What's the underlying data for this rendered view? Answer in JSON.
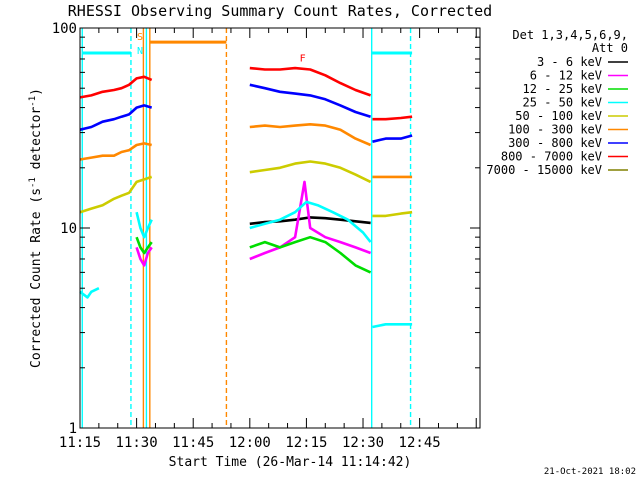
{
  "chart_data": {
    "type": "line",
    "title": "RHESSI Observing Summary Count Rates, Corrected",
    "xlabel": "Start Time (26-Mar-14 11:14:42)",
    "ylabel": "Corrected Count Rate (s⁻¹ detector⁻¹)",
    "ylabel_main": "Corrected Count Rate (s",
    "ylabel_sup1": "-1",
    "ylabel_mid": " detector",
    "ylabel_sup2": "-1",
    "ylabel_end": ")",
    "yscale": "log",
    "ylim": [
      1,
      100
    ],
    "y_ticks": [
      "1",
      "10",
      "100"
    ],
    "x_range_minutes": [
      675,
      781
    ],
    "x_ticks": [
      {
        "label": "11:15",
        "minute": 675
      },
      {
        "label": "11:30",
        "minute": 690
      },
      {
        "label": "11:45",
        "minute": 705
      },
      {
        "label": "12:00",
        "minute": 720
      },
      {
        "label": "12:15",
        "minute": 735
      },
      {
        "label": "12:30",
        "minute": 750
      },
      {
        "label": "12:45",
        "minute": 765
      }
    ],
    "legend_header": [
      "Det 1,3,4,5,6,9,",
      "Att 0"
    ],
    "series": [
      {
        "name": "3 - 6 keV",
        "color": "#000000",
        "segments": [
          {
            "x": [
              675,
              679,
              684,
              688,
              690,
              693,
              694
            ],
            "y": [
              null,
              null,
              null,
              null,
              null,
              null,
              null
            ]
          },
          {
            "x": [
              720,
              724,
              728,
              732,
              736,
              740,
              744,
              748,
              752
            ],
            "y": [
              10.5,
              10.7,
              10.8,
              11.0,
              11.3,
              11.2,
              11.0,
              10.8,
              10.6
            ]
          },
          {
            "x": [
              752.5,
              756,
              760,
              763
            ],
            "y": [
              null,
              null,
              null,
              null
            ]
          }
        ]
      },
      {
        "name": "6 - 12 keV",
        "color": "#ff00ff",
        "segments": [
          {
            "x": [
              690,
              691,
              692,
              693,
              694
            ],
            "y": [
              8.0,
              7.0,
              6.5,
              7.5,
              8.0
            ]
          },
          {
            "x": [
              720,
              724,
              728,
              732,
              734.5,
              736,
              740,
              744,
              748,
              752
            ],
            "y": [
              7.0,
              7.5,
              8.0,
              9.0,
              17.0,
              10.0,
              9.0,
              8.5,
              8.0,
              7.5
            ]
          }
        ]
      },
      {
        "name": "12 - 25 keV",
        "color": "#00dd00",
        "segments": [
          {
            "x": [
              690,
              691,
              692,
              693,
              694
            ],
            "y": [
              9.0,
              8.0,
              7.5,
              8.0,
              8.5
            ]
          },
          {
            "x": [
              720,
              724,
              728,
              732,
              736,
              740,
              744,
              748,
              752
            ],
            "y": [
              8.0,
              8.5,
              8.0,
              8.5,
              9.0,
              8.5,
              7.5,
              6.5,
              6.0
            ]
          }
        ]
      },
      {
        "name": "25 - 50 keV",
        "color": "#00ffff",
        "segments": [
          {
            "x": [
              675,
              677,
              678,
              680
            ],
            "y": [
              4.8,
              4.5,
              4.8,
              5.0
            ]
          },
          {
            "x": [
              690,
              691,
              692,
              693,
              694
            ],
            "y": [
              12.0,
              10.0,
              9.0,
              10.0,
              11.0
            ]
          },
          {
            "x": [
              720,
              724,
              728,
              732,
              735,
              738,
              742,
              746,
              750,
              752
            ],
            "y": [
              10.0,
              10.5,
              11.0,
              12.0,
              13.5,
              13.0,
              12.0,
              11.0,
              9.5,
              8.5
            ]
          },
          {
            "x": [
              752.5,
              756,
              760,
              763
            ],
            "y": [
              3.2,
              3.3,
              3.3,
              3.3
            ]
          }
        ]
      },
      {
        "name": "50 - 100 keV",
        "color": "#cccc00",
        "segments": [
          {
            "x": [
              675,
              678,
              681,
              684,
              686,
              688,
              690,
              692,
              694
            ],
            "y": [
              12.0,
              12.5,
              13.0,
              14.0,
              14.5,
              15.0,
              17.0,
              17.5,
              18.0
            ]
          },
          {
            "x": [
              720,
              724,
              728,
              732,
              736,
              740,
              744,
              748,
              752
            ],
            "y": [
              19.0,
              19.5,
              20.0,
              21.0,
              21.5,
              21.0,
              20.0,
              18.5,
              17.0
            ]
          },
          {
            "x": [
              752.5,
              756,
              760,
              763
            ],
            "y": [
              11.5,
              11.5,
              11.8,
              12.0
            ]
          }
        ]
      },
      {
        "name": "100 - 300 keV",
        "color": "#ff8800",
        "segments": [
          {
            "x": [
              675,
              678,
              681,
              684,
              686,
              688,
              690,
              692,
              694
            ],
            "y": [
              22.0,
              22.5,
              23.0,
              23.0,
              24.0,
              24.5,
              26.0,
              26.5,
              26.0
            ]
          },
          {
            "x": [
              720,
              724,
              728,
              732,
              736,
              740,
              744,
              748,
              752
            ],
            "y": [
              32.0,
              32.5,
              32.0,
              32.5,
              33.0,
              32.5,
              31.0,
              28.0,
              26.0
            ]
          },
          {
            "x": [
              752.5,
              756,
              760,
              763
            ],
            "y": [
              18.0,
              18.0,
              18.0,
              18.0
            ]
          }
        ]
      },
      {
        "name": "300 - 800 keV",
        "color": "#0000ff",
        "segments": [
          {
            "x": [
              675,
              678,
              681,
              684,
              686,
              688,
              690,
              692,
              694
            ],
            "y": [
              31.0,
              32.0,
              34.0,
              35.0,
              36.0,
              37.0,
              40.0,
              41.0,
              40.0
            ]
          },
          {
            "x": [
              720,
              724,
              728,
              732,
              736,
              740,
              744,
              748,
              752
            ],
            "y": [
              52.0,
              50.0,
              48.0,
              47.0,
              46.0,
              44.0,
              41.0,
              38.0,
              36.0
            ]
          },
          {
            "x": [
              752.5,
              756,
              760,
              763
            ],
            "y": [
              27.0,
              28.0,
              28.0,
              29.0
            ]
          }
        ]
      },
      {
        "name": "800 - 7000 keV",
        "color": "#ff0000",
        "segments": [
          {
            "x": [
              675,
              678,
              681,
              684,
              686,
              688,
              690,
              692,
              694
            ],
            "y": [
              45.0,
              46.0,
              48.0,
              49.0,
              50.0,
              52.0,
              56.0,
              57.0,
              55.0
            ]
          },
          {
            "x": [
              720,
              724,
              728,
              732,
              736,
              740,
              744,
              748,
              752
            ],
            "y": [
              63.0,
              62.0,
              62.0,
              63.0,
              62.0,
              58.0,
              53.0,
              49.0,
              46.0
            ]
          },
          {
            "x": [
              752.5,
              756,
              760,
              763
            ],
            "y": [
              35.0,
              35.0,
              35.5,
              36.0
            ]
          }
        ]
      },
      {
        "name": "7000 - 15000 keV",
        "color": "#808000",
        "segments": []
      }
    ],
    "flag_lines": [
      {
        "minute": 675.6,
        "color": "#00ffff",
        "style": "solid"
      },
      {
        "minute": 688.5,
        "color": "#00ffff",
        "style": "dashed"
      },
      {
        "minute": 692.6,
        "color": "#00ffff",
        "style": "solid"
      },
      {
        "minute": 691.8,
        "color": "#ff8800",
        "style": "solid"
      },
      {
        "minute": 693.5,
        "color": "#ff8800",
        "style": "solid"
      },
      {
        "minute": 713.8,
        "color": "#ff8800",
        "style": "dashed"
      },
      {
        "minute": 752.3,
        "color": "#00ffff",
        "style": "solid"
      },
      {
        "minute": 762.6,
        "color": "#00ffff",
        "style": "dashed"
      }
    ],
    "flag_bars": [
      {
        "from": 675.6,
        "to": 688.5,
        "y": 75,
        "color": "#00ffff"
      },
      {
        "from": 752.3,
        "to": 763,
        "y": 75,
        "color": "#00ffff"
      },
      {
        "from": 693.5,
        "to": 713.8,
        "y": 85,
        "color": "#ff8800"
      }
    ],
    "flag_letters": [
      {
        "text": "S",
        "minute": 690.9,
        "y": 87,
        "color": "#ff8800"
      },
      {
        "text": "N",
        "minute": 690.9,
        "y": 74,
        "color": "#00ffff"
      },
      {
        "text": "F",
        "minute": 734.0,
        "y": 68,
        "color": "#ff0000"
      }
    ]
  },
  "footer": {
    "date_stamp": "21-Oct-2021 18:02"
  }
}
